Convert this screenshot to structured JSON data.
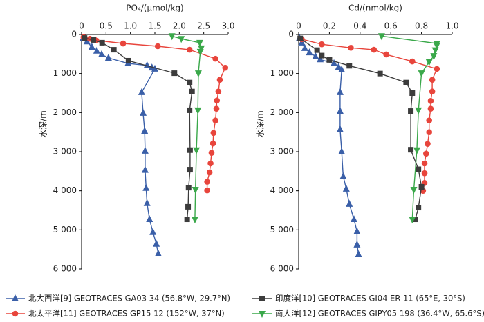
{
  "chart_data": [
    {
      "type": "line",
      "x_label": "PO₄/(μmol/kg)",
      "y_label": "水深/m",
      "xlim": [
        0,
        3
      ],
      "xticks": [
        0,
        0.5,
        {
          "value": 1,
          "label": "1.0"
        },
        1.5,
        {
          "value": 2,
          "label": "2.0"
        },
        2.5,
        {
          "value": 3,
          "label": "3.0"
        }
      ],
      "ylim": [
        0,
        6000
      ],
      "yticks": [
        0,
        {
          "value": 1000,
          "label": "1 000"
        },
        {
          "value": 2000,
          "label": "2 000"
        },
        {
          "value": 3000,
          "label": "3 000"
        },
        {
          "value": 4000,
          "label": "4 000"
        },
        {
          "value": 5000,
          "label": "5 000"
        },
        {
          "value": 6000,
          "label": "6 000"
        }
      ],
      "series": [
        {
          "x": [
            0.03,
            0.11,
            0.21,
            0.31,
            0.41,
            0.55,
            0.95,
            1.34,
            1.44,
            1.5,
            1.23,
            1.26,
            1.29,
            1.3,
            1.3,
            1.32,
            1.34,
            1.39,
            1.46,
            1.53,
            1.57
          ],
          "y": [
            90,
            180,
            320,
            420,
            510,
            600,
            740,
            790,
            850,
            880,
            1480,
            2010,
            2470,
            2980,
            3470,
            3930,
            4320,
            4730,
            5060,
            5360,
            5610
          ]
        },
        {
          "x": [
            0.04,
            0.17,
            0.3,
            0.85,
            1.56,
            2.21,
            2.74,
            2.94,
            2.83,
            2.8,
            2.77,
            2.76,
            2.74,
            2.7,
            2.69,
            2.66,
            2.64,
            2.62,
            2.57,
            2.57
          ],
          "y": [
            70,
            110,
            150,
            230,
            300,
            390,
            620,
            850,
            1160,
            1460,
            1690,
            1900,
            2200,
            2520,
            2790,
            3030,
            3300,
            3530,
            3770,
            3990
          ]
        },
        {
          "x": [
            0.06,
            0.24,
            0.42,
            0.66,
            0.96,
            1.9,
            2.21,
            2.26,
            2.21,
            2.22,
            2.22,
            2.19,
            2.18,
            2.16
          ],
          "y": [
            90,
            140,
            210,
            390,
            670,
            990,
            1230,
            1460,
            1940,
            2960,
            3460,
            3920,
            4410,
            4730
          ]
        },
        {
          "x": [
            1.85,
            2.04,
            2.42,
            2.45,
            2.43,
            2.39,
            2.38,
            2.35,
            2.33,
            2.32
          ],
          "y": [
            40,
            110,
            210,
            350,
            440,
            990,
            1940,
            2960,
            3970,
            4730
          ]
        }
      ]
    },
    {
      "type": "line",
      "x_label": "Cd/(nmol/kg)",
      "y_label": "水深/m",
      "xlim": [
        0,
        1
      ],
      "xticks": [
        0,
        0.2,
        0.4,
        0.6,
        0.8,
        {
          "value": 1,
          "label": "1.0"
        }
      ],
      "ylim": [
        0,
        6000
      ],
      "yticks": [
        0,
        {
          "value": 1000,
          "label": "1 000"
        },
        {
          "value": 2000,
          "label": "2 000"
        },
        {
          "value": 3000,
          "label": "3 000"
        },
        {
          "value": 4000,
          "label": "4 000"
        },
        {
          "value": 5000,
          "label": "5 000"
        },
        {
          "value": 6000,
          "label": "6 000"
        }
      ],
      "series": [
        {
          "x": [
            0.005,
            0.02,
            0.04,
            0.07,
            0.11,
            0.14,
            0.23,
            0.26,
            0.28,
            0.27,
            0.27,
            0.27,
            0.28,
            0.29,
            0.31,
            0.33,
            0.36,
            0.38,
            0.38,
            0.39
          ],
          "y": [
            90,
            210,
            350,
            460,
            560,
            640,
            740,
            830,
            900,
            1480,
            1960,
            2430,
            3000,
            3630,
            3950,
            4340,
            4730,
            5040,
            5380,
            5630
          ]
        },
        {
          "x": [
            0.02,
            0.15,
            0.34,
            0.49,
            0.57,
            0.74,
            0.9,
            0.87,
            0.87,
            0.86,
            0.86,
            0.85,
            0.85,
            0.84,
            0.83,
            0.82,
            0.82,
            0.82,
            0.81
          ],
          "y": [
            120,
            250,
            340,
            390,
            510,
            690,
            880,
            1160,
            1460,
            1700,
            1900,
            2200,
            2500,
            2800,
            3050,
            3300,
            3550,
            3800,
            4000
          ]
        },
        {
          "x": [
            0.01,
            0.12,
            0.15,
            0.2,
            0.33,
            0.53,
            0.7,
            0.74,
            0.73,
            0.73,
            0.78,
            0.8,
            0.78,
            0.76
          ],
          "y": [
            100,
            400,
            540,
            650,
            800,
            1000,
            1230,
            1500,
            1960,
            2950,
            3450,
            3900,
            4430,
            4730
          ]
        },
        {
          "x": [
            0.54,
            0.9,
            0.9,
            0.89,
            0.88,
            0.85,
            0.8,
            0.78,
            0.77,
            0.75,
            0.74
          ],
          "y": [
            40,
            230,
            280,
            400,
            550,
            700,
            990,
            1940,
            2960,
            3970,
            4730
          ]
        }
      ]
    }
  ],
  "legend": [
    {
      "name": "北大西洋[9] GEOTRACES GA03 34 (56.8°W, 29.7°N)",
      "color": "#3a5fa8",
      "marker": "triangle-up"
    },
    {
      "name": "北太平洋[11] GEOTRACES GP15 12 (152°W, 37°N)",
      "color": "#e8453c",
      "marker": "circle"
    },
    {
      "name": "印度洋[10] GEOTRACES GI04 ER-11 (65°E, 30°S)",
      "color": "#3c3c3c",
      "marker": "square"
    },
    {
      "name": "南大洋[12] GEOTRACES GIPY05 198 (36.4°W, 65.6°S)",
      "color": "#3aa84a",
      "marker": "triangle-down"
    }
  ]
}
